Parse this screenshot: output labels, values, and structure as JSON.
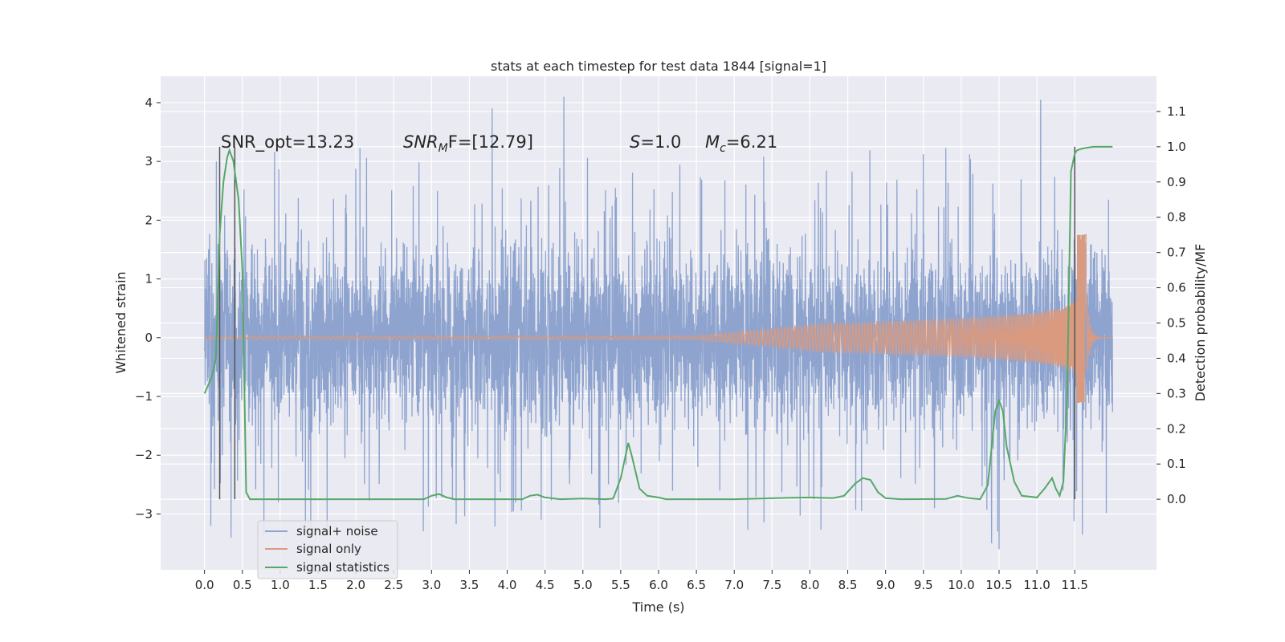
{
  "chart_data": {
    "type": "line",
    "title": "stats at each timestep for test data 1844 [signal=1]",
    "xlabel": "Time (s)",
    "ylabel": "Whitened strain",
    "ylabel_right": "Detection probability/MF",
    "xlim": [
      -0.58,
      12.58
    ],
    "ylim": [
      -3.95,
      4.45
    ],
    "ylim_right": [
      -0.2,
      1.2
    ],
    "x_ticks": [
      "0.0",
      "0.5",
      "1.0",
      "1.5",
      "2.0",
      "2.5",
      "3.0",
      "3.5",
      "4.0",
      "4.5",
      "5.0",
      "5.5",
      "6.0",
      "6.5",
      "7.0",
      "7.5",
      "8.0",
      "8.5",
      "9.0",
      "9.5",
      "10.0",
      "10.5",
      "11.0",
      "11.5"
    ],
    "y_ticks": [
      "4",
      "3",
      "2",
      "1",
      "0",
      "−1",
      "−2",
      "−3"
    ],
    "y_ticks_right": [
      "1.1",
      "1.0",
      "0.9",
      "0.8",
      "0.7",
      "0.6",
      "0.5",
      "0.4",
      "0.3",
      "0.2",
      "0.1",
      "0.0"
    ],
    "grid": true,
    "legend": {
      "position": "lower-left",
      "entries": [
        "signal+ noise",
        "signal only",
        "signal statistics"
      ]
    },
    "colors": {
      "signal_plus_noise": "#8ea4cf",
      "signal_only": "#d99a80",
      "signal_statistics": "#55a868",
      "markers": "#555555",
      "plot_bg": "#eaeaf2"
    },
    "annotations": {
      "snr_opt": "SNR_opt=13.23",
      "snr_mf_sym": "SNR",
      "snr_mf_sub": "M",
      "snr_mf_tail": "F=[12.79]",
      "s_sym": "S",
      "s_val": "=1.0",
      "mc_sym": "M",
      "mc_sub": "c",
      "mc_val": "=6.21"
    },
    "series": [
      {
        "name": "signal+ noise",
        "axis": "left",
        "t_range": [
          0,
          12.0
        ],
        "envelope": {
          "typical": 1.45,
          "peaks_max": 4.1,
          "peaks_min": -3.65
        },
        "notable_peaks": [
          [
            3.8,
            3.9
          ],
          [
            4.75,
            4.1
          ],
          [
            11.05,
            4.05
          ],
          [
            10.5,
            -3.6
          ],
          [
            10.4,
            -3.5
          ],
          [
            0.35,
            -3.4
          ],
          [
            11.6,
            -3.35
          ],
          [
            4.45,
            -3.1
          ]
        ]
      },
      {
        "name": "signal only",
        "axis": "left",
        "chirp": {
          "start": 6.5,
          "merger": 11.65,
          "end": 12.0,
          "max_amp_pos": 1.75,
          "max_amp_neg": -1.1
        }
      },
      {
        "name": "signal statistics",
        "axis": "right",
        "x": [
          0,
          0.1,
          0.15,
          0.2,
          0.25,
          0.3,
          0.33,
          0.38,
          0.45,
          0.5,
          0.55,
          0.6,
          0.65,
          1.0,
          2.5,
          2.9,
          3.0,
          3.1,
          3.2,
          3.3,
          4.0,
          4.2,
          4.3,
          4.4,
          4.5,
          4.7,
          5.0,
          5.3,
          5.4,
          5.5,
          5.6,
          5.65,
          5.75,
          5.85,
          6.0,
          6.1,
          7.0,
          7.7,
          8.0,
          8.3,
          8.45,
          8.6,
          8.7,
          8.8,
          8.9,
          9.0,
          9.2,
          9.8,
          9.95,
          10.1,
          10.25,
          10.35,
          10.45,
          10.5,
          10.55,
          10.6,
          10.7,
          10.8,
          11.0,
          11.1,
          11.2,
          11.25,
          11.3,
          11.35,
          11.4,
          11.45,
          11.5,
          11.53,
          11.57,
          11.6,
          11.65,
          11.75,
          11.9,
          12.0
        ],
        "y": [
          0.3,
          0.35,
          0.4,
          0.75,
          0.9,
          0.97,
          0.99,
          0.96,
          0.85,
          0.65,
          0.02,
          0.0,
          0.0,
          0.0,
          0.0,
          0.0,
          0.01,
          0.015,
          0.005,
          0.0,
          0.0,
          0.0,
          0.01,
          0.013,
          0.005,
          0.0,
          0.002,
          0.0,
          0.002,
          0.06,
          0.16,
          0.12,
          0.03,
          0.01,
          0.005,
          0.0,
          0.0,
          0.004,
          0.005,
          0.003,
          0.01,
          0.045,
          0.06,
          0.055,
          0.02,
          0.003,
          0.0,
          0.001,
          0.01,
          0.003,
          0.0,
          0.04,
          0.25,
          0.28,
          0.25,
          0.15,
          0.05,
          0.01,
          0.005,
          0.03,
          0.06,
          0.03,
          0.01,
          0.05,
          0.3,
          0.93,
          0.98,
          0.99,
          0.993,
          0.995,
          0.997,
          1.0,
          1.0,
          1.0
        ]
      }
    ],
    "vertical_markers": [
      0.2,
      0.4,
      11.5
    ]
  }
}
